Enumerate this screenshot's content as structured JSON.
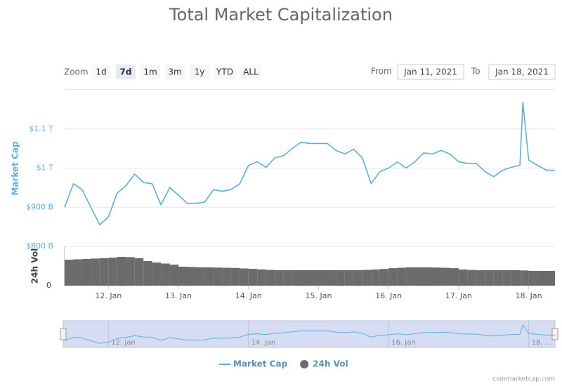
{
  "chart_data": {
    "type": "line",
    "title": "Total Market Capitalization",
    "zoom_label": "Zoom",
    "zoom_buttons": [
      "1d",
      "7d",
      "1m",
      "3m",
      "1y",
      "YTD",
      "ALL"
    ],
    "zoom_selected": 1,
    "from_label": "From",
    "from_value": "Jan 11, 2021",
    "to_label": "To",
    "to_value": "Jan 18, 2021",
    "y_label": "Market Cap",
    "y2_label": "24h Vol",
    "credit": "coinmarketcap.com",
    "x": [
      "2021-01-11T09:00",
      "2021-01-11T12:00",
      "2021-01-11T15:00",
      "2021-01-11T18:00",
      "2021-01-11T21:00",
      "2021-01-12T00:00",
      "2021-01-12T03:00",
      "2021-01-12T06:00",
      "2021-01-12T09:00",
      "2021-01-12T12:00",
      "2021-01-12T15:00",
      "2021-01-12T18:00",
      "2021-01-12T21:00",
      "2021-01-13T00:00",
      "2021-01-13T03:00",
      "2021-01-13T06:00",
      "2021-01-13T09:00",
      "2021-01-13T12:00",
      "2021-01-13T15:00",
      "2021-01-13T18:00",
      "2021-01-13T21:00",
      "2021-01-14T00:00",
      "2021-01-14T03:00",
      "2021-01-14T06:00",
      "2021-01-14T09:00",
      "2021-01-14T12:00",
      "2021-01-14T15:00",
      "2021-01-14T18:00",
      "2021-01-14T21:00",
      "2021-01-15T00:00",
      "2021-01-15T03:00",
      "2021-01-15T06:00",
      "2021-01-15T09:00",
      "2021-01-15T12:00",
      "2021-01-15T15:00",
      "2021-01-15T18:00",
      "2021-01-15T21:00",
      "2021-01-16T00:00",
      "2021-01-16T03:00",
      "2021-01-16T06:00",
      "2021-01-16T09:00",
      "2021-01-16T12:00",
      "2021-01-16T15:00",
      "2021-01-16T18:00",
      "2021-01-16T21:00",
      "2021-01-17T00:00",
      "2021-01-17T03:00",
      "2021-01-17T06:00",
      "2021-01-17T09:00",
      "2021-01-17T12:00",
      "2021-01-17T15:00",
      "2021-01-17T18:00",
      "2021-01-17T21:00",
      "2021-01-17T22:00",
      "2021-01-18T00:00",
      "2021-01-18T03:00",
      "2021-01-18T06:00",
      "2021-01-18T09:00"
    ],
    "series": [
      {
        "name": "Market Cap",
        "color": "#5bb1dd",
        "values": [
          900,
          960,
          945,
          900,
          855,
          875,
          936,
          955,
          985,
          963,
          960,
          906,
          950,
          931,
          910,
          910,
          913,
          945,
          941,
          945,
          960,
          1007,
          1016,
          1002,
          1026,
          1032,
          1050,
          1066,
          1063,
          1063,
          1063,
          1045,
          1036,
          1048,
          1026,
          960,
          991,
          1000,
          1016,
          1000,
          1016,
          1039,
          1036,
          1045,
          1036,
          1016,
          1012,
          1012,
          991,
          978,
          994,
          1002,
          1007,
          1168,
          1021,
          1007,
          995,
          994
        ]
      },
      {
        "name": "24h Vol",
        "color": "#6b6b6b",
        "axis": "y2",
        "values": [
          264,
          268,
          272,
          276,
          280,
          285,
          293,
          290,
          280,
          250,
          235,
          225,
          214,
          193,
          190,
          186,
          186,
          184,
          182,
          180,
          175,
          171,
          165,
          160,
          157,
          157,
          157,
          157,
          157,
          157,
          157,
          157,
          157,
          157,
          160,
          164,
          170,
          178,
          182,
          186,
          186,
          186,
          184,
          182,
          178,
          164,
          160,
          157,
          157,
          157,
          157,
          157,
          155,
          155,
          150,
          150,
          150,
          150
        ]
      }
    ],
    "xlim": [
      "2021-01-11T09:00",
      "2021-01-18T09:00"
    ],
    "xticks": [
      {
        "value": "2021-01-12T00:00",
        "label": "12. Jan"
      },
      {
        "value": "2021-01-13T00:00",
        "label": "13. Jan"
      },
      {
        "value": "2021-01-14T00:00",
        "label": "14. Jan"
      },
      {
        "value": "2021-01-15T00:00",
        "label": "15. Jan"
      },
      {
        "value": "2021-01-16T00:00",
        "label": "16. Jan"
      },
      {
        "value": "2021-01-17T00:00",
        "label": "17. Jan"
      },
      {
        "value": "2021-01-18T00:00",
        "label": "18. Jan"
      }
    ],
    "ylim": [
      800,
      1200
    ],
    "yticks": [
      {
        "value": 800,
        "label": "$800 B"
      },
      {
        "value": 900,
        "label": "$900 B"
      },
      {
        "value": 1000,
        "label": "$1 T"
      },
      {
        "value": 1100,
        "label": "$1.1 T"
      }
    ],
    "y2lim": [
      0,
      400
    ],
    "y2ticks": [
      0
    ],
    "navigator_ticks": [
      {
        "value": "2021-01-12T00:00",
        "label": "12. Jan"
      },
      {
        "value": "2021-01-14T00:00",
        "label": "14. Jan"
      },
      {
        "value": "2021-01-16T00:00",
        "label": "16. Jan"
      },
      {
        "value": "2021-01-18T00:00",
        "label": "18. …"
      }
    ],
    "grid": true
  }
}
